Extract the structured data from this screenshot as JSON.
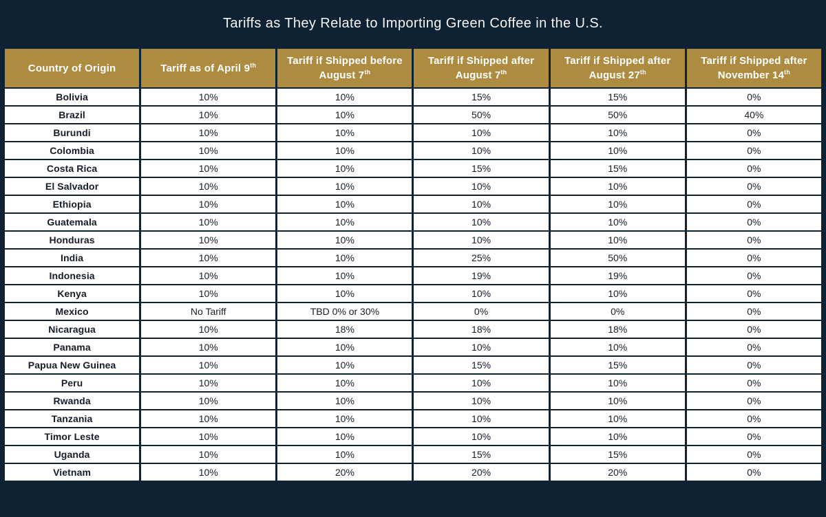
{
  "title": "Tariffs as They Relate to Importing Green Coffee in the U.S.",
  "colors": {
    "navy_background": "#0f2233",
    "gold_header": "#ad8b40",
    "header_text": "#ffffff",
    "cell_background": "#ffffff",
    "cell_text": "#141d28"
  },
  "table": {
    "columns": [
      {
        "label": "Country of Origin",
        "sup": ""
      },
      {
        "label": "Tariff as of April 9",
        "sup": "th"
      },
      {
        "label": "Tariff if Shipped before August 7",
        "sup": "th"
      },
      {
        "label": "Tariff if Shipped after August 7",
        "sup": "th"
      },
      {
        "label": "Tariff if Shipped after August 27",
        "sup": "th"
      },
      {
        "label": "Tariff if Shipped after November 14",
        "sup": "th"
      }
    ],
    "rows": [
      {
        "country": "Bolivia",
        "values": [
          "10%",
          "10%",
          "15%",
          "15%",
          "0%"
        ]
      },
      {
        "country": "Brazil",
        "values": [
          "10%",
          "10%",
          "50%",
          "50%",
          "40%"
        ]
      },
      {
        "country": "Burundi",
        "values": [
          "10%",
          "10%",
          "10%",
          "10%",
          "0%"
        ]
      },
      {
        "country": "Colombia",
        "values": [
          "10%",
          "10%",
          "10%",
          "10%",
          "0%"
        ]
      },
      {
        "country": "Costa Rica",
        "values": [
          "10%",
          "10%",
          "15%",
          "15%",
          "0%"
        ]
      },
      {
        "country": "El Salvador",
        "values": [
          "10%",
          "10%",
          "10%",
          "10%",
          "0%"
        ]
      },
      {
        "country": "Ethiopia",
        "values": [
          "10%",
          "10%",
          "10%",
          "10%",
          "0%"
        ]
      },
      {
        "country": "Guatemala",
        "values": [
          "10%",
          "10%",
          "10%",
          "10%",
          "0%"
        ]
      },
      {
        "country": "Honduras",
        "values": [
          "10%",
          "10%",
          "10%",
          "10%",
          "0%"
        ]
      },
      {
        "country": "India",
        "values": [
          "10%",
          "10%",
          "25%",
          "50%",
          "0%"
        ]
      },
      {
        "country": "Indonesia",
        "values": [
          "10%",
          "10%",
          "19%",
          "19%",
          "0%"
        ]
      },
      {
        "country": "Kenya",
        "values": [
          "10%",
          "10%",
          "10%",
          "10%",
          "0%"
        ]
      },
      {
        "country": "Mexico",
        "values": [
          "No Tariff",
          "TBD 0% or 30%",
          "0%",
          "0%",
          "0%"
        ]
      },
      {
        "country": "Nicaragua",
        "values": [
          "10%",
          "18%",
          "18%",
          "18%",
          "0%"
        ]
      },
      {
        "country": "Panama",
        "values": [
          "10%",
          "10%",
          "10%",
          "10%",
          "0%"
        ]
      },
      {
        "country": "Papua New Guinea",
        "values": [
          "10%",
          "10%",
          "15%",
          "15%",
          "0%"
        ]
      },
      {
        "country": "Peru",
        "values": [
          "10%",
          "10%",
          "10%",
          "10%",
          "0%"
        ]
      },
      {
        "country": "Rwanda",
        "values": [
          "10%",
          "10%",
          "10%",
          "10%",
          "0%"
        ]
      },
      {
        "country": "Tanzania",
        "values": [
          "10%",
          "10%",
          "10%",
          "10%",
          "0%"
        ]
      },
      {
        "country": "Timor Leste",
        "values": [
          "10%",
          "10%",
          "10%",
          "10%",
          "0%"
        ]
      },
      {
        "country": "Uganda",
        "values": [
          "10%",
          "10%",
          "15%",
          "15%",
          "0%"
        ]
      },
      {
        "country": "Vietnam",
        "values": [
          "10%",
          "20%",
          "20%",
          "20%",
          "0%"
        ]
      }
    ]
  },
  "chart_data": {
    "type": "table",
    "title": "Tariffs as They Relate to Importing Green Coffee in the U.S.",
    "columns": [
      "Country of Origin",
      "Tariff as of April 9th",
      "Tariff if Shipped before August 7th",
      "Tariff if Shipped after August 7th",
      "Tariff if Shipped after August 27th",
      "Tariff if Shipped after November 14th"
    ],
    "rows": [
      [
        "Bolivia",
        "10%",
        "10%",
        "15%",
        "15%",
        "0%"
      ],
      [
        "Brazil",
        "10%",
        "10%",
        "50%",
        "50%",
        "40%"
      ],
      [
        "Burundi",
        "10%",
        "10%",
        "10%",
        "10%",
        "0%"
      ],
      [
        "Colombia",
        "10%",
        "10%",
        "10%",
        "10%",
        "0%"
      ],
      [
        "Costa Rica",
        "10%",
        "10%",
        "15%",
        "15%",
        "0%"
      ],
      [
        "El Salvador",
        "10%",
        "10%",
        "10%",
        "10%",
        "0%"
      ],
      [
        "Ethiopia",
        "10%",
        "10%",
        "10%",
        "10%",
        "0%"
      ],
      [
        "Guatemala",
        "10%",
        "10%",
        "10%",
        "10%",
        "0%"
      ],
      [
        "Honduras",
        "10%",
        "10%",
        "10%",
        "10%",
        "0%"
      ],
      [
        "India",
        "10%",
        "10%",
        "25%",
        "50%",
        "0%"
      ],
      [
        "Indonesia",
        "10%",
        "10%",
        "19%",
        "19%",
        "0%"
      ],
      [
        "Kenya",
        "10%",
        "10%",
        "10%",
        "10%",
        "0%"
      ],
      [
        "Mexico",
        "No Tariff",
        "TBD 0% or 30%",
        "0%",
        "0%",
        "0%"
      ],
      [
        "Nicaragua",
        "10%",
        "18%",
        "18%",
        "18%",
        "0%"
      ],
      [
        "Panama",
        "10%",
        "10%",
        "10%",
        "10%",
        "0%"
      ],
      [
        "Papua New Guinea",
        "10%",
        "10%",
        "15%",
        "15%",
        "0%"
      ],
      [
        "Peru",
        "10%",
        "10%",
        "10%",
        "10%",
        "0%"
      ],
      [
        "Rwanda",
        "10%",
        "10%",
        "10%",
        "10%",
        "0%"
      ],
      [
        "Tanzania",
        "10%",
        "10%",
        "10%",
        "10%",
        "0%"
      ],
      [
        "Timor Leste",
        "10%",
        "10%",
        "10%",
        "10%",
        "0%"
      ],
      [
        "Uganda",
        "10%",
        "10%",
        "15%",
        "15%",
        "0%"
      ],
      [
        "Vietnam",
        "10%",
        "20%",
        "20%",
        "20%",
        "0%"
      ]
    ]
  }
}
